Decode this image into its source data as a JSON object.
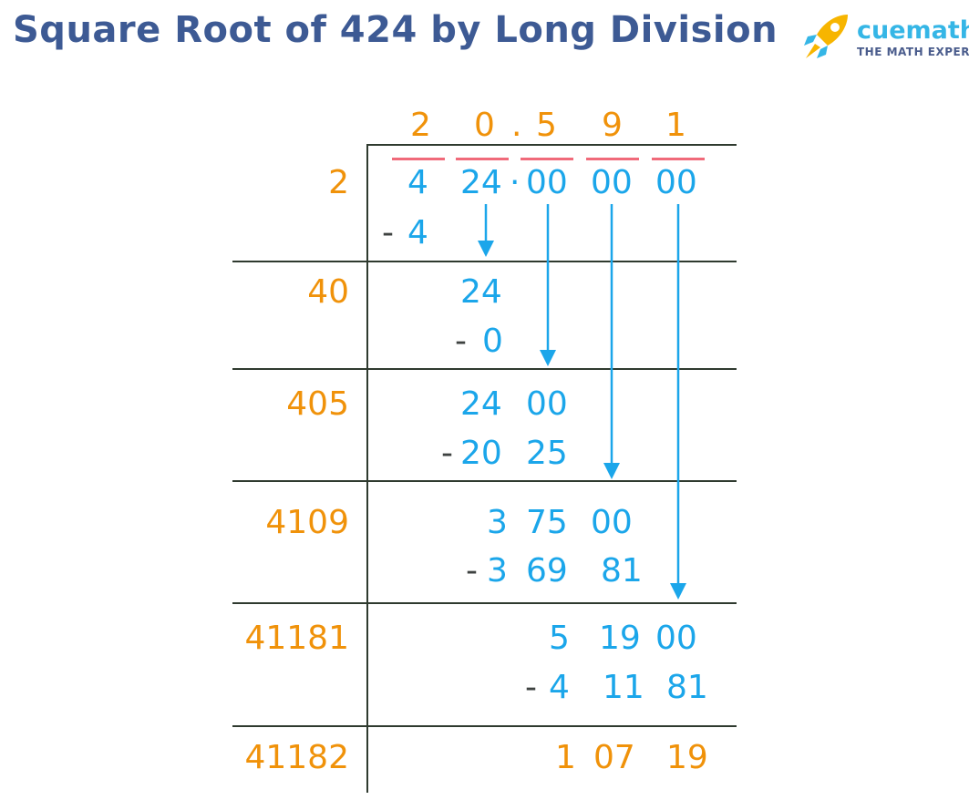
{
  "title": "Square Root of 424 by Long Division",
  "logo": {
    "brand": "cuemath",
    "tagline": "THE MATH EXPERT"
  },
  "quotient": {
    "d1": "2",
    "d2": "0",
    "dot": ".",
    "d3": "5",
    "d4": "9",
    "d5": "1"
  },
  "dividend": {
    "g1": "4",
    "g2": "24",
    "dot": "·",
    "g3": "00",
    "g4": "00",
    "g5": "00"
  },
  "divisors": [
    "2",
    "40",
    "405",
    "4109",
    "41181",
    "41182"
  ],
  "steps": [
    {
      "minus": "-",
      "sub": "4"
    },
    {
      "value": "24",
      "minus": "-",
      "sub": "0"
    },
    {
      "value_a": "24",
      "value_b": "00",
      "minus": "-",
      "sub_a": "20",
      "sub_b": "25"
    },
    {
      "value_a": "3",
      "value_b": "75",
      "value_c": "00",
      "minus": "-",
      "sub_a": "3",
      "sub_b": "69",
      "sub_c": "81"
    },
    {
      "value_a": "5",
      "value_b": "19",
      "value_c": "00",
      "minus": "-",
      "sub_a": "4",
      "sub_b": "11",
      "sub_c": "81"
    }
  ],
  "remainder": {
    "a": "1",
    "b": "07",
    "c": "19"
  },
  "colors": {
    "orange": "#f0920a",
    "blue": "#1ba6ea",
    "title": "#3d5a94",
    "pair_bar": "#f06a7a",
    "lines": "#2f3a2f"
  }
}
